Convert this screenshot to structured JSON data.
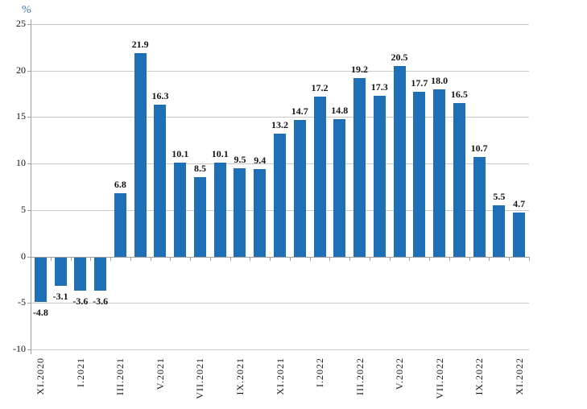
{
  "chart_data": {
    "type": "bar",
    "title": "",
    "ylabel": "%",
    "xlabel": "",
    "ylim": [
      -10,
      25
    ],
    "ytick_interval": 5,
    "yticks": [
      25,
      20,
      15,
      10,
      5,
      0,
      -5,
      -10
    ],
    "ytick_labels": [
      "25",
      "20",
      "15",
      "10",
      "5",
      "0",
      "-5",
      "-10"
    ],
    "grid": true,
    "legend": "none",
    "values": [
      -4.8,
      -3.1,
      -3.6,
      -3.6,
      6.8,
      21.9,
      16.3,
      10.1,
      8.5,
      10.1,
      9.5,
      9.4,
      13.2,
      14.7,
      17.2,
      14.8,
      19.2,
      17.3,
      20.5,
      17.7,
      18.0,
      16.5,
      10.7,
      5.5,
      4.7
    ],
    "value_labels": [
      "-4.8",
      "-3.1",
      "-3.6",
      "-3.6",
      "6.8",
      "21.9",
      "16.3",
      "10.1",
      "8.5",
      "10.1",
      "9.5",
      "9.4",
      "13.2",
      "14.7",
      "17.2",
      "14.8",
      "19.2",
      "17.3",
      "20.5",
      "17.7",
      "18.0",
      "16.5",
      "10.7",
      "5.5",
      "4.7"
    ],
    "x_tick_labels": [
      "XI.2020",
      "I.2021",
      "III.2021",
      "V.2021",
      "VII.2021",
      "IX.2021",
      "XI.2021",
      "I.2022",
      "III.2022",
      "V.2022",
      "VII.2022",
      "IX.2022",
      "XI.2022"
    ],
    "x_tick_every_n_bars": 2,
    "colors": {
      "bar": "#1E6FB5",
      "gridline": "#C9C9C9",
      "axis": "#9E9E9E",
      "text": "#141414",
      "unit_label": "#4472C4"
    }
  }
}
